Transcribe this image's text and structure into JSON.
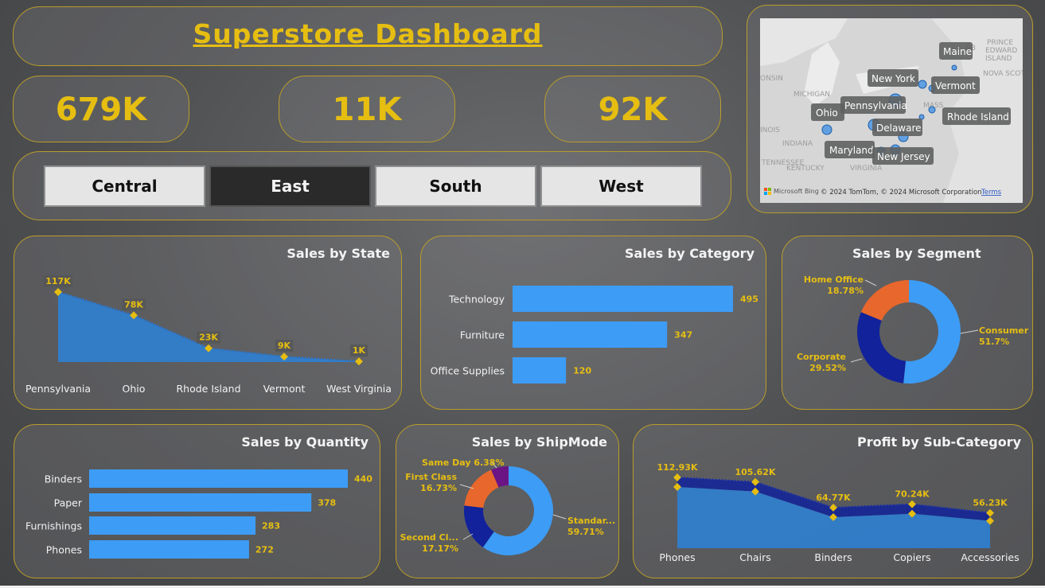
{
  "title": "Superstore Dashboard",
  "kpis": [
    "679K",
    "11K",
    "92K"
  ],
  "region_filter": {
    "options": [
      "Central",
      "East",
      "South",
      "West"
    ],
    "selected": "East"
  },
  "map": {
    "states": [
      "Maine",
      "New York",
      "Vermont",
      "Pennsylvania",
      "Ohio",
      "Rhode Island",
      "Delaware",
      "Maryland",
      "New Jersey"
    ],
    "background_labels": [
      "PRINCE",
      "EDWARD",
      "ISLAND",
      "NB",
      "NOVA SCOTI",
      "ONSIN",
      "MICHIGAN",
      "MASS",
      "INOIS",
      "INDIANA",
      "TENNESSEE",
      "KENTUCKY",
      "VIRGINIA"
    ],
    "attribution": "© 2024 TomTom, © 2024 Microsoft Corporation",
    "bing_label": "Microsoft Bing",
    "terms_label": "Terms",
    "marker_color": "#3b8ee6"
  },
  "panels": {
    "sales_by_state": "Sales by State",
    "sales_by_category": "Sales by Category",
    "sales_by_segment": "Sales by Segment",
    "sales_by_quantity": "Sales by Quantity",
    "sales_by_shipmode": "Sales by ShipMode",
    "profit_by_subcategory": "Profit by Sub-Category"
  },
  "colors": {
    "accent": "#e6be11",
    "bar": "#3d9cf5",
    "area": "#2f7fd1",
    "dark_blue": "#11229a",
    "orange": "#e8672c",
    "purple": "#6b1585"
  },
  "chart_data": [
    {
      "type": "area",
      "title": "Sales by State",
      "categories": [
        "Pennsylvania",
        "Ohio",
        "Rhode Island",
        "Vermont",
        "West Virginia"
      ],
      "values": [
        117000,
        78000,
        23000,
        9000,
        1000
      ],
      "labels": [
        "117K",
        "78K",
        "23K",
        "9K",
        "1K"
      ]
    },
    {
      "type": "bar",
      "title": "Sales by Category",
      "categories": [
        "Technology",
        "Furniture",
        "Office Supplies"
      ],
      "values": [
        495,
        347,
        120
      ],
      "labels": [
        "495",
        "347",
        "120"
      ]
    },
    {
      "type": "pie",
      "title": "Sales by Segment",
      "categories": [
        "Consumer",
        "Corporate",
        "Home Office"
      ],
      "values": [
        51.7,
        29.52,
        18.78
      ],
      "labels": [
        "51.7%",
        "29.52%",
        "18.78%"
      ]
    },
    {
      "type": "bar",
      "title": "Sales by Quantity",
      "categories": [
        "Binders",
        "Paper",
        "Furnishings",
        "Phones"
      ],
      "values": [
        440,
        378,
        283,
        272
      ],
      "labels": [
        "440",
        "378",
        "283",
        "272"
      ]
    },
    {
      "type": "pie",
      "title": "Sales by ShipMode",
      "categories": [
        "Standar...",
        "Second Cl...",
        "First Class",
        "Same Day"
      ],
      "values": [
        59.71,
        17.17,
        16.73,
        6.38
      ],
      "labels": [
        "59.71%",
        "17.17%",
        "16.73%",
        "6.38%"
      ]
    },
    {
      "type": "area",
      "title": "Profit by Sub-Category",
      "categories": [
        "Phones",
        "Chairs",
        "Binders",
        "Copiers",
        "Accessories"
      ],
      "values": [
        112.93,
        105.62,
        64.77,
        70.24,
        56.23
      ],
      "labels": [
        "112.93K",
        "105.62K",
        "64.77K",
        "70.24K",
        "56.23K"
      ],
      "unit": "K"
    }
  ]
}
